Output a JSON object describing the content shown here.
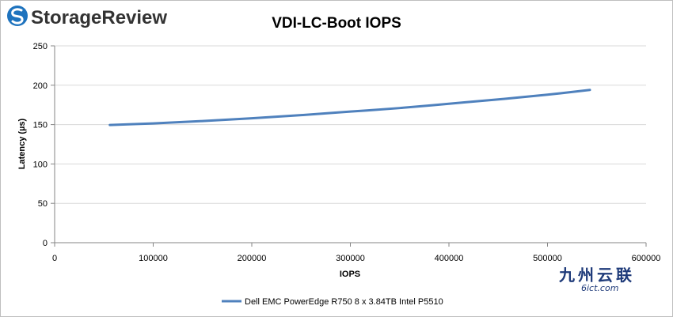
{
  "logo": {
    "text": "StorageReview",
    "icon": "storagereview-logo-icon",
    "icon_color": "#1e73be",
    "text_color": "#333333"
  },
  "watermark": {
    "text": "九州云联",
    "subtext": "6ict.com",
    "color": "#1f3b7a"
  },
  "chart_data": {
    "type": "line",
    "title": "VDI-LC-Boot IOPS",
    "xlabel": "IOPS",
    "ylabel": "Latency (µs)",
    "xlim": [
      0,
      600000
    ],
    "ylim": [
      0,
      250
    ],
    "xticks": [
      0,
      100000,
      200000,
      300000,
      400000,
      500000,
      600000
    ],
    "xtick_labels": [
      "0",
      "100000",
      "200000",
      "300000",
      "400000",
      "500000",
      "600000"
    ],
    "yticks": [
      0,
      50,
      100,
      150,
      200,
      250
    ],
    "ytick_labels": [
      "0",
      "50",
      "100",
      "150",
      "200",
      "250"
    ],
    "grid": true,
    "legend_position": "bottom",
    "series": [
      {
        "name": "Dell EMC PowerEdge R750 8 x 3.84TB Intel P5510",
        "color": "#4f81bd",
        "x": [
          56000,
          100000,
          150000,
          200000,
          250000,
          300000,
          350000,
          400000,
          450000,
          500000,
          543000
        ],
        "y": [
          149.5,
          151.5,
          154.5,
          158,
          162,
          166.5,
          171,
          176.5,
          182,
          188,
          194
        ]
      }
    ]
  }
}
